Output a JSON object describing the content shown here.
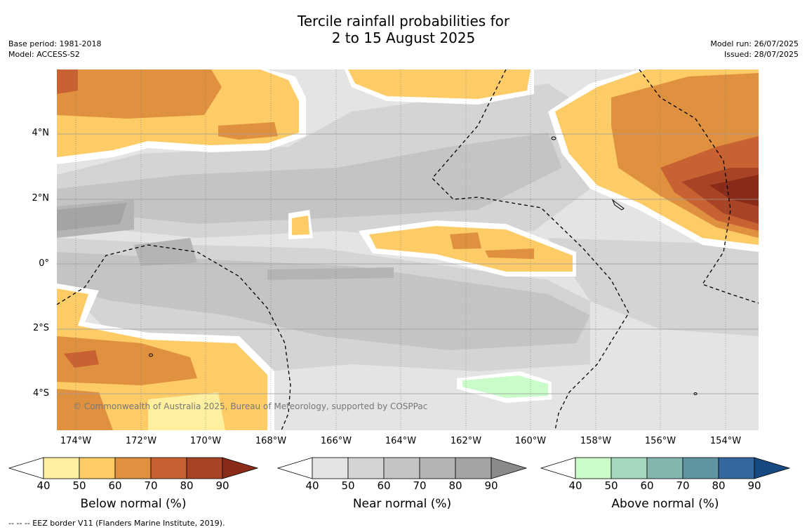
{
  "title": {
    "line1": "Tercile rainfall probabilities for",
    "line2": "2 to 15 August 2025"
  },
  "meta_left": {
    "base_period": "Base period: 1981-2018",
    "model": "Model: ACCESS-S2"
  },
  "meta_right": {
    "model_run": "Model run: 26/07/2025",
    "issued": "Issued: 28/07/2025"
  },
  "copyright": "© Commonwealth of Australia 2025, Bureau of Meteorology, supported by COSPPac",
  "lat_ticks": [
    "4°N",
    "2°N",
    "0°",
    "2°S",
    "4°S"
  ],
  "lon_ticks": [
    "174°W",
    "172°W",
    "170°W",
    "168°W",
    "166°W",
    "164°W",
    "162°W",
    "160°W",
    "158°W",
    "156°W",
    "154°W"
  ],
  "colorbars": {
    "below": {
      "title": "Below normal (%)",
      "ticks": [
        "40",
        "50",
        "60",
        "70",
        "80",
        "90"
      ],
      "colors": [
        "#fff0a0",
        "#fdcc66",
        "#e0913f",
        "#c96232",
        "#a84425",
        "#8a2a18"
      ]
    },
    "near": {
      "title": "Near normal (%)",
      "ticks": [
        "40",
        "50",
        "60",
        "70",
        "80",
        "90"
      ],
      "colors": [
        "#e4e4e4",
        "#d4d4d4",
        "#c4c4c4",
        "#b4b4b4",
        "#a4a4a4",
        "#8a8a8a"
      ]
    },
    "above": {
      "title": "Above normal (%)",
      "ticks": [
        "40",
        "50",
        "60",
        "70",
        "80",
        "90"
      ],
      "colors": [
        "#c9fcc9",
        "#a6d8bd",
        "#84b6b0",
        "#5f94a0",
        "#33679d",
        "#174a80"
      ]
    }
  },
  "footnote": "-- -- -- EEZ border V11 (Flanders Marine Institute, 2019)."
}
